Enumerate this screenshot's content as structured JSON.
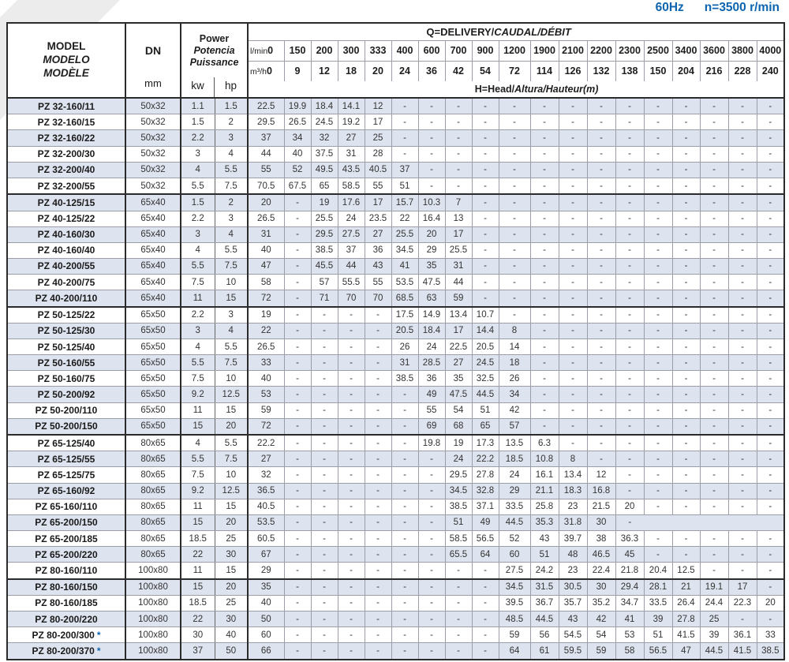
{
  "page": {
    "frequency": "60Hz",
    "rotation": "n=3500 r/min"
  },
  "colors": {
    "accent": "#0d65b0",
    "stripe": "#dee4ef",
    "grid": "#9b9ea6",
    "dark": "#2b2b2b"
  },
  "table": {
    "header": {
      "model_lines": [
        "MODEL",
        "MODELO",
        "MODÈLE"
      ],
      "dn_label": "DN",
      "dn_unit": "mm",
      "power_lines": [
        "Power",
        "Potencia",
        "Puissance"
      ],
      "power_units": [
        "kw",
        "hp"
      ],
      "q_title": {
        "normal": "Q=DELIVERY/",
        "italic": "CAUDAL/DÉBIT"
      },
      "flow_units": {
        "lmin": "l/min",
        "m3h": "m³/h"
      },
      "lmin_values": [
        "0",
        "150",
        "200",
        "300",
        "333",
        "400",
        "600",
        "700",
        "900",
        "1200",
        "1900",
        "2100",
        "2200",
        "2300",
        "2500",
        "3400",
        "3600",
        "3800",
        "4000"
      ],
      "m3h_values": [
        "0",
        "9",
        "12",
        "18",
        "20",
        "24",
        "36",
        "42",
        "54",
        "72",
        "114",
        "126",
        "132",
        "138",
        "150",
        "204",
        "216",
        "228",
        "240"
      ],
      "head_title": {
        "normal": "H=Head/",
        "italic": "Altura/Hauteur(m)"
      }
    },
    "rows": [
      {
        "model": "PZ 32-160/11",
        "star": false,
        "dn": "50x32",
        "kw": "1.1",
        "hp": "1.5",
        "group_end": false,
        "values": [
          "22.5",
          "19.9",
          "18.4",
          "14.1",
          "12",
          "-",
          "-",
          "-",
          "-",
          "-",
          "-",
          "-",
          "-",
          "-",
          "-",
          "-",
          "-",
          "-",
          "-"
        ]
      },
      {
        "model": "PZ 32-160/15",
        "star": false,
        "dn": "50x32",
        "kw": "1.5",
        "hp": "2",
        "group_end": false,
        "values": [
          "29.5",
          "26.5",
          "24.5",
          "19.2",
          "17",
          "-",
          "-",
          "-",
          "-",
          "-",
          "-",
          "-",
          "-",
          "-",
          "-",
          "-",
          "-",
          "-",
          "-"
        ]
      },
      {
        "model": "PZ 32-160/22",
        "star": false,
        "dn": "50x32",
        "kw": "2.2",
        "hp": "3",
        "group_end": false,
        "values": [
          "37",
          "34",
          "32",
          "27",
          "25",
          "-",
          "-",
          "-",
          "-",
          "-",
          "-",
          "-",
          "-",
          "-",
          "-",
          "-",
          "-",
          "-",
          "-"
        ]
      },
      {
        "model": "PZ 32-200/30",
        "star": false,
        "dn": "50x32",
        "kw": "3",
        "hp": "4",
        "group_end": false,
        "values": [
          "44",
          "40",
          "37.5",
          "31",
          "28",
          "-",
          "-",
          "-",
          "-",
          "-",
          "-",
          "-",
          "-",
          "-",
          "-",
          "-",
          "-",
          "-",
          "-"
        ]
      },
      {
        "model": "PZ 32-200/40",
        "star": false,
        "dn": "50x32",
        "kw": "4",
        "hp": "5.5",
        "group_end": false,
        "values": [
          "55",
          "52",
          "49.5",
          "43.5",
          "40.5",
          "37",
          "-",
          "-",
          "-",
          "-",
          "-",
          "-",
          "-",
          "-",
          "-",
          "-",
          "-",
          "-",
          "-"
        ]
      },
      {
        "model": "PZ 32-200/55",
        "star": false,
        "dn": "50x32",
        "kw": "5.5",
        "hp": "7.5",
        "group_end": true,
        "values": [
          "70.5",
          "67.5",
          "65",
          "58.5",
          "55",
          "51",
          "-",
          "-",
          "-",
          "-",
          "-",
          "-",
          "-",
          "-",
          "-",
          "-",
          "-",
          "-",
          "-"
        ]
      },
      {
        "model": "PZ 40-125/15",
        "star": false,
        "dn": "65x40",
        "kw": "1.5",
        "hp": "2",
        "group_end": false,
        "values": [
          "20",
          "-",
          "19",
          "17.6",
          "17",
          "15.7",
          "10.3",
          "7",
          "-",
          "-",
          "-",
          "-",
          "-",
          "-",
          "-",
          "-",
          "-",
          "-",
          "-"
        ]
      },
      {
        "model": "PZ 40-125/22",
        "star": false,
        "dn": "65x40",
        "kw": "2.2",
        "hp": "3",
        "group_end": false,
        "values": [
          "26.5",
          "-",
          "25.5",
          "24",
          "23.5",
          "22",
          "16.4",
          "13",
          "-",
          "-",
          "-",
          "-",
          "-",
          "-",
          "-",
          "-",
          "-",
          "-",
          "-"
        ]
      },
      {
        "model": "PZ 40-160/30",
        "star": false,
        "dn": "65x40",
        "kw": "3",
        "hp": "4",
        "group_end": false,
        "values": [
          "31",
          "-",
          "29.5",
          "27.5",
          "27",
          "25.5",
          "20",
          "17",
          "-",
          "-",
          "-",
          "-",
          "-",
          "-",
          "-",
          "-",
          "-",
          "-",
          "-"
        ]
      },
      {
        "model": "PZ 40-160/40",
        "star": false,
        "dn": "65x40",
        "kw": "4",
        "hp": "5.5",
        "group_end": false,
        "values": [
          "40",
          "-",
          "38.5",
          "37",
          "36",
          "34.5",
          "29",
          "25.5",
          "-",
          "-",
          "-",
          "-",
          "-",
          "-",
          "-",
          "-",
          "-",
          "-",
          "-"
        ]
      },
      {
        "model": "PZ 40-200/55",
        "star": false,
        "dn": "65x40",
        "kw": "5.5",
        "hp": "7.5",
        "group_end": false,
        "values": [
          "47",
          "-",
          "45.5",
          "44",
          "43",
          "41",
          "35",
          "31",
          "-",
          "-",
          "-",
          "-",
          "-",
          "-",
          "-",
          "-",
          "-",
          "-",
          "-"
        ]
      },
      {
        "model": "PZ 40-200/75",
        "star": false,
        "dn": "65x40",
        "kw": "7.5",
        "hp": "10",
        "group_end": false,
        "values": [
          "58",
          "-",
          "57",
          "55.5",
          "55",
          "53.5",
          "47.5",
          "44",
          "-",
          "-",
          "-",
          "-",
          "-",
          "-",
          "-",
          "-",
          "-",
          "-",
          "-"
        ]
      },
      {
        "model": "PZ 40-200/110",
        "star": false,
        "dn": "65x40",
        "kw": "11",
        "hp": "15",
        "group_end": true,
        "values": [
          "72",
          "-",
          "71",
          "70",
          "70",
          "68.5",
          "63",
          "59",
          "-",
          "-",
          "-",
          "-",
          "-",
          "-",
          "-",
          "-",
          "-",
          "-",
          "-"
        ]
      },
      {
        "model": "PZ 50-125/22",
        "star": false,
        "dn": "65x50",
        "kw": "2.2",
        "hp": "3",
        "group_end": false,
        "values": [
          "19",
          "-",
          "-",
          "-",
          "-",
          "17.5",
          "14.9",
          "13.4",
          "10.7",
          "-",
          "-",
          "-",
          "-",
          "-",
          "-",
          "-",
          "-",
          "-",
          "-"
        ]
      },
      {
        "model": "PZ 50-125/30",
        "star": false,
        "dn": "65x50",
        "kw": "3",
        "hp": "4",
        "group_end": false,
        "values": [
          "22",
          "-",
          "-",
          "-",
          "-",
          "20.5",
          "18.4",
          "17",
          "14.4",
          "8",
          "-",
          "-",
          "-",
          "-",
          "-",
          "-",
          "-",
          "-",
          "-"
        ]
      },
      {
        "model": "PZ 50-125/40",
        "star": false,
        "dn": "65x50",
        "kw": "4",
        "hp": "5.5",
        "group_end": false,
        "values": [
          "26.5",
          "-",
          "-",
          "-",
          "-",
          "26",
          "24",
          "22.5",
          "20.5",
          "14",
          "-",
          "-",
          "-",
          "-",
          "-",
          "-",
          "-",
          "-",
          "-"
        ]
      },
      {
        "model": "PZ 50-160/55",
        "star": false,
        "dn": "65x50",
        "kw": "5.5",
        "hp": "7.5",
        "group_end": false,
        "values": [
          "33",
          "-",
          "-",
          "-",
          "-",
          "31",
          "28.5",
          "27",
          "24.5",
          "18",
          "-",
          "-",
          "-",
          "-",
          "-",
          "-",
          "-",
          "-",
          "-"
        ]
      },
      {
        "model": "PZ 50-160/75",
        "star": false,
        "dn": "65x50",
        "kw": "7.5",
        "hp": "10",
        "group_end": false,
        "values": [
          "40",
          "-",
          "-",
          "-",
          "-",
          "38.5",
          "36",
          "35",
          "32.5",
          "26",
          "-",
          "-",
          "-",
          "-",
          "-",
          "-",
          "-",
          "-",
          "-"
        ]
      },
      {
        "model": "PZ 50-200/92",
        "star": false,
        "dn": "65x50",
        "kw": "9.2",
        "hp": "12.5",
        "group_end": false,
        "values": [
          "53",
          "-",
          "-",
          "-",
          "-",
          "-",
          "49",
          "47.5",
          "44.5",
          "34",
          "-",
          "-",
          "-",
          "-",
          "-",
          "-",
          "-",
          "-",
          "-"
        ]
      },
      {
        "model": "PZ 50-200/110",
        "star": false,
        "dn": "65x50",
        "kw": "11",
        "hp": "15",
        "group_end": false,
        "values": [
          "59",
          "-",
          "-",
          "-",
          "-",
          "-",
          "55",
          "54",
          "51",
          "42",
          "-",
          "-",
          "-",
          "-",
          "-",
          "-",
          "-",
          "-",
          "-"
        ]
      },
      {
        "model": "PZ 50-200/150",
        "star": false,
        "dn": "65x50",
        "kw": "15",
        "hp": "20",
        "group_end": true,
        "values": [
          "72",
          "-",
          "-",
          "-",
          "-",
          "-",
          "69",
          "68",
          "65",
          "57",
          "-",
          "-",
          "-",
          "-",
          "-",
          "-",
          "-",
          "-",
          "-"
        ]
      },
      {
        "model": "PZ 65-125/40",
        "star": false,
        "dn": "80x65",
        "kw": "4",
        "hp": "5.5",
        "group_end": false,
        "values": [
          "22.2",
          "-",
          "-",
          "-",
          "-",
          "-",
          "19.8",
          "19",
          "17.3",
          "13.5",
          "6.3",
          "-",
          "-",
          "-",
          "-",
          "-",
          "-",
          "-",
          "-"
        ]
      },
      {
        "model": "PZ 65-125/55",
        "star": false,
        "dn": "80x65",
        "kw": "5.5",
        "hp": "7.5",
        "group_end": false,
        "values": [
          "27",
          "-",
          "-",
          "-",
          "-",
          "-",
          "-",
          "24",
          "22.2",
          "18.5",
          "10.8",
          "8",
          "-",
          "-",
          "-",
          "-",
          "-",
          "-",
          "-"
        ]
      },
      {
        "model": "PZ 65-125/75",
        "star": false,
        "dn": "80x65",
        "kw": "7.5",
        "hp": "10",
        "group_end": false,
        "values": [
          "32",
          "-",
          "-",
          "-",
          "-",
          "-",
          "-",
          "29.5",
          "27.8",
          "24",
          "16.1",
          "13.4",
          "12",
          "-",
          "-",
          "-",
          "-",
          "-",
          "-"
        ]
      },
      {
        "model": "PZ 65-160/92",
        "star": false,
        "dn": "80x65",
        "kw": "9.2",
        "hp": "12.5",
        "group_end": false,
        "values": [
          "36.5",
          "-",
          "-",
          "-",
          "-",
          "-",
          "-",
          "34.5",
          "32.8",
          "29",
          "21.1",
          "18.3",
          "16.8",
          "-",
          "-",
          "-",
          "-",
          "-",
          "-"
        ]
      },
      {
        "model": "PZ 65-160/110",
        "star": false,
        "dn": "80x65",
        "kw": "11",
        "hp": "15",
        "group_end": false,
        "values": [
          "40.5",
          "-",
          "-",
          "-",
          "-",
          "-",
          "-",
          "38.5",
          "37.1",
          "33.5",
          "25.8",
          "23",
          "21.5",
          "20",
          "-",
          "-",
          "-",
          "-",
          "-"
        ]
      },
      {
        "model": "PZ 65-200/150",
        "star": false,
        "dn": "80x65",
        "kw": "15",
        "hp": "20",
        "group_end": false,
        "values": [
          "53.5",
          "-",
          "-",
          "-",
          "-",
          "-",
          "-",
          "51",
          "49",
          "44.5",
          "35.3",
          "31.8",
          "30",
          "-",
          "",
          "",
          "",
          "",
          ""
        ]
      },
      {
        "model": "PZ 65-200/185",
        "star": false,
        "dn": "80x65",
        "kw": "18.5",
        "hp": "25",
        "group_end": false,
        "values": [
          "60.5",
          "-",
          "-",
          "-",
          "-",
          "-",
          "-",
          "58.5",
          "56.5",
          "52",
          "43",
          "39.7",
          "38",
          "36.3",
          "-",
          "-",
          "-",
          "-",
          "-"
        ]
      },
      {
        "model": "PZ 65-200/220",
        "star": false,
        "dn": "80x65",
        "kw": "22",
        "hp": "30",
        "group_end": false,
        "values": [
          "67",
          "-",
          "-",
          "-",
          "-",
          "-",
          "-",
          "65.5",
          "64",
          "60",
          "51",
          "48",
          "46.5",
          "45",
          "-",
          "-",
          "-",
          "-",
          "-"
        ]
      },
      {
        "model": "PZ 80-160/110",
        "star": false,
        "dn": "100x80",
        "kw": "11",
        "hp": "15",
        "group_end": true,
        "values": [
          "29",
          "-",
          "-",
          "-",
          "-",
          "-",
          "-",
          "-",
          "-",
          "27.5",
          "24.2",
          "23",
          "22.4",
          "21.8",
          "20.4",
          "12.5",
          "-",
          "-",
          "-"
        ]
      },
      {
        "model": "PZ 80-160/150",
        "star": false,
        "dn": "100x80",
        "kw": "15",
        "hp": "20",
        "group_end": false,
        "values": [
          "35",
          "-",
          "-",
          "-",
          "-",
          "-",
          "-",
          "-",
          "-",
          "34.5",
          "31.5",
          "30.5",
          "30",
          "29.4",
          "28.1",
          "21",
          "19.1",
          "17",
          "-"
        ]
      },
      {
        "model": "PZ 80-160/185",
        "star": false,
        "dn": "100x80",
        "kw": "18.5",
        "hp": "25",
        "group_end": false,
        "values": [
          "40",
          "-",
          "-",
          "-",
          "-",
          "-",
          "-",
          "-",
          "-",
          "39.5",
          "36.7",
          "35.7",
          "35.2",
          "34.7",
          "33.5",
          "26.4",
          "24.4",
          "22.3",
          "20"
        ]
      },
      {
        "model": "PZ 80-200/220",
        "star": false,
        "dn": "100x80",
        "kw": "22",
        "hp": "30",
        "group_end": false,
        "values": [
          "50",
          "-",
          "-",
          "-",
          "-",
          "-",
          "-",
          "-",
          "-",
          "48.5",
          "44.5",
          "43",
          "42",
          "41",
          "39",
          "27.8",
          "25",
          "-",
          "-"
        ]
      },
      {
        "model": "PZ 80-200/300",
        "star": true,
        "dn": "100x80",
        "kw": "30",
        "hp": "40",
        "group_end": false,
        "values": [
          "60",
          "-",
          "-",
          "-",
          "-",
          "-",
          "-",
          "-",
          "-",
          "59",
          "56",
          "54.5",
          "54",
          "53",
          "51",
          "41.5",
          "39",
          "36.1",
          "33"
        ]
      },
      {
        "model": "PZ 80-200/370",
        "star": true,
        "dn": "100x80",
        "kw": "37",
        "hp": "50",
        "group_end": false,
        "values": [
          "66",
          "-",
          "-",
          "-",
          "-",
          "-",
          "-",
          "-",
          "-",
          "64",
          "61",
          "59.5",
          "59",
          "58",
          "56.5",
          "47",
          "44.5",
          "41.5",
          "38.5"
        ]
      }
    ]
  }
}
